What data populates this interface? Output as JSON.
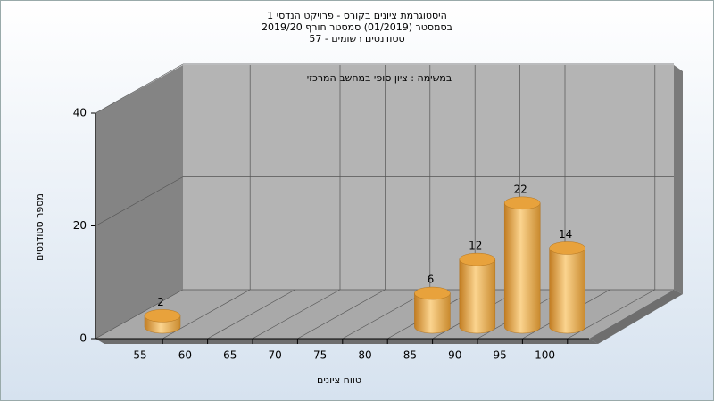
{
  "chart_data": {
    "type": "bar3d",
    "title": [
      "היסטוגרמת ציונים בקורס - פרויקט הנדסי 1",
      "בסמסטר  (01/2019)  סמסטר חורף 2019/20",
      "סטודנטים רשומים - 57"
    ],
    "subtitle": "במשימה : ציון סופי במחשב המרכזי",
    "x_label": "טווח ציונים",
    "y_label": "מספר סטודנטים",
    "categories": [
      "55",
      "60",
      "65",
      "70",
      "75",
      "80",
      "85",
      "90",
      "95",
      "100"
    ],
    "series": [
      {
        "color": "#e8a23c",
        "values": [
          2,
          0,
          0,
          0,
          0,
          0,
          6,
          12,
          22,
          14
        ]
      }
    ],
    "ylim": [
      0,
      40
    ],
    "yticks": [
      0,
      20,
      40
    ],
    "grid": true
  }
}
